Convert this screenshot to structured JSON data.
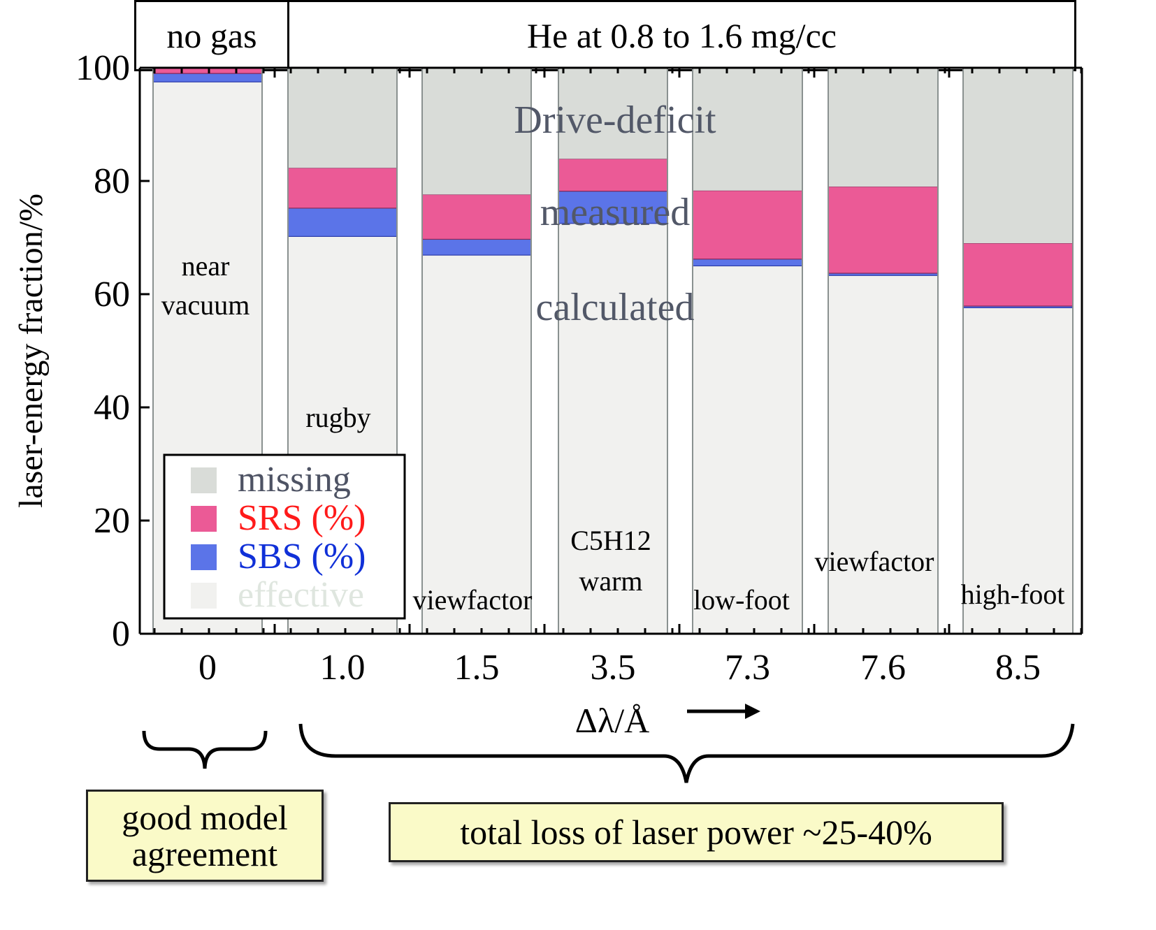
{
  "header": {
    "left_label": "no gas",
    "right_label": "He at 0.8 to 1.6 mg/cc"
  },
  "annotations": {
    "drive_deficit": "Drive-deficit",
    "measured": "measured",
    "calculated": "calculated",
    "left_brace_note": "good model agreement",
    "right_brace_note": "total loss of laser power ~25-40%",
    "x_arrow": "right-arrow-icon"
  },
  "colors": {
    "missing": "#d9dcd8",
    "srs": "#eb5a96",
    "sbs": "#5b74e8",
    "effective": "#f1f1ef",
    "srs_text": "#ff1a1a",
    "sbs_text": "#1030d8",
    "missing_text": "#4e5364",
    "effective_text": "#dfe6df",
    "overlay_text": "#525868"
  },
  "chart_data": {
    "type": "bar",
    "stacked": true,
    "title": "",
    "xlabel": "Δλ/Å",
    "ylabel": "laser-energy fraction/%",
    "ylim": [
      0,
      100
    ],
    "yticks": [
      0,
      20,
      40,
      60,
      80,
      100
    ],
    "categories": [
      "0",
      "1.0",
      "1.5",
      "3.5",
      "7.3",
      "7.6",
      "8.5"
    ],
    "bar_labels": [
      "near vacuum",
      "rugby",
      "viewfactor",
      "C5H12 warm",
      "low-foot",
      "viewfactor",
      "high-foot"
    ],
    "series": [
      {
        "name": "effective",
        "values": [
          97.5,
          70.2,
          66.9,
          72.5,
          65.0,
          63.3,
          57.6
        ]
      },
      {
        "name": "SBS (%)",
        "values": [
          1.5,
          5.0,
          2.8,
          5.7,
          1.2,
          0.4,
          0.3
        ]
      },
      {
        "name": "SRS (%)",
        "values": [
          1.0,
          7.1,
          7.9,
          5.7,
          12.1,
          15.3,
          11.1
        ]
      },
      {
        "name": "missing",
        "values": [
          0.0,
          17.7,
          22.4,
          16.1,
          21.7,
          21.0,
          31.0
        ]
      }
    ],
    "legend": {
      "position": "bottom-left",
      "entries": [
        "missing",
        "SRS (%)",
        "SBS (%)",
        "effective"
      ]
    },
    "grid": false
  }
}
